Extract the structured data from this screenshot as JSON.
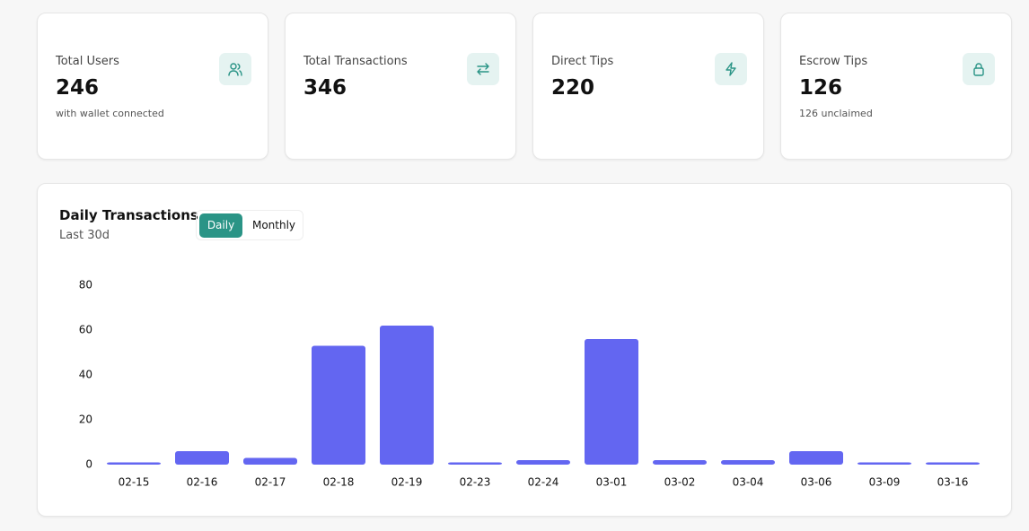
{
  "cards": [
    {
      "label": "Total Users",
      "value": 246,
      "note": "with wallet connected"
    },
    {
      "label": "Total Transactions",
      "value": 346
    },
    {
      "label": "Direct Tips",
      "value": 220
    },
    {
      "label": "Escrow Tips",
      "value": 126,
      "note": "126 unclaimed"
    }
  ],
  "toggle": [
    "Daily",
    "Monthly"
  ],
  "chart_data": {
    "type": "bar",
    "title": "Daily Transactions",
    "subtitle": "Last 30d",
    "categories": [
      "02-15",
      "02-16",
      "02-17",
      "02-18",
      "02-19",
      "02-23",
      "02-24",
      "03-01",
      "03-02",
      "03-04",
      "03-06",
      "03-09",
      "03-16"
    ],
    "values": [
      1,
      6,
      3,
      53,
      62,
      1,
      2,
      56,
      2,
      2,
      6,
      1,
      1
    ],
    "color": "#6366f1",
    "ylim": [
      0,
      80
    ],
    "yticks": [
      0,
      20,
      40,
      60,
      80
    ],
    "grid": false
  }
}
